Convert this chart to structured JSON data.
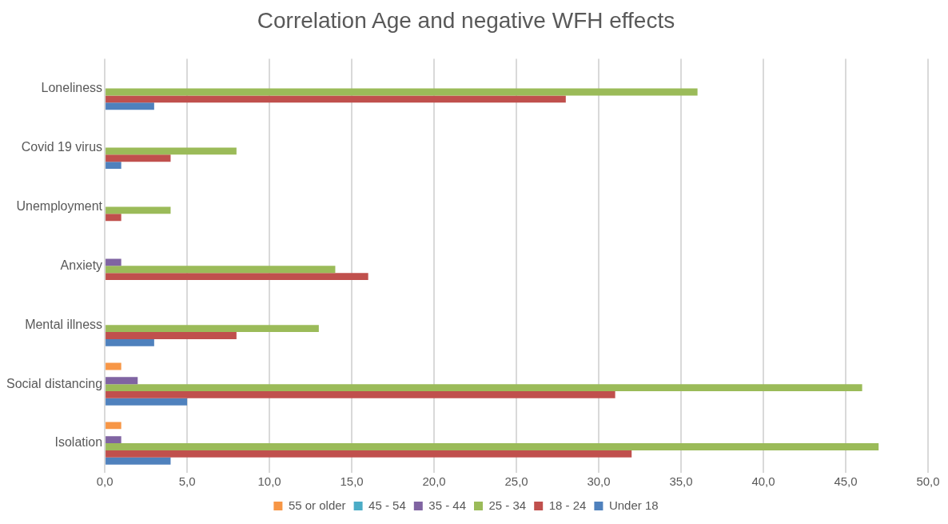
{
  "chart_data": {
    "type": "bar",
    "orientation": "horizontal",
    "title": "Correlation Age and negative WFH effects",
    "categories": [
      "Loneliness",
      "Covid 19 virus",
      "Unemployment",
      "Anxiety",
      "Mental illness",
      "Social distancing",
      "Isolation"
    ],
    "series": [
      {
        "name": "55 or older",
        "color": "#f79646",
        "values": [
          0,
          0,
          0,
          0,
          0,
          1,
          1
        ]
      },
      {
        "name": "45 - 54",
        "color": "#4bacc6",
        "values": [
          0,
          0,
          0,
          0,
          0,
          0,
          0
        ]
      },
      {
        "name": "35 - 44",
        "color": "#8064a2",
        "values": [
          0,
          0,
          0,
          1,
          0,
          2,
          1
        ]
      },
      {
        "name": "25 - 34",
        "color": "#9bbb59",
        "values": [
          36,
          8,
          4,
          14,
          13,
          46,
          47
        ]
      },
      {
        "name": "18 - 24",
        "color": "#c0504d",
        "values": [
          28,
          4,
          1,
          16,
          8,
          31,
          32
        ]
      },
      {
        "name": "Under 18",
        "color": "#4f81bd",
        "values": [
          3,
          1,
          0,
          0,
          3,
          5,
          4
        ]
      }
    ],
    "xlim": [
      0,
      50
    ],
    "xticks": [
      {
        "value": 0,
        "label": "0,0"
      },
      {
        "value": 5,
        "label": "5,0"
      },
      {
        "value": 10,
        "label": "10,0"
      },
      {
        "value": 15,
        "label": "15,0"
      },
      {
        "value": 20,
        "label": "20,0"
      },
      {
        "value": 25,
        "label": "25,0"
      },
      {
        "value": 30,
        "label": "30,0"
      },
      {
        "value": 35,
        "label": "35,0"
      },
      {
        "value": 40,
        "label": "40,0"
      },
      {
        "value": 45,
        "label": "45,0"
      },
      {
        "value": 50,
        "label": "50,0"
      }
    ],
    "grid": "x",
    "legend": "bottom"
  }
}
